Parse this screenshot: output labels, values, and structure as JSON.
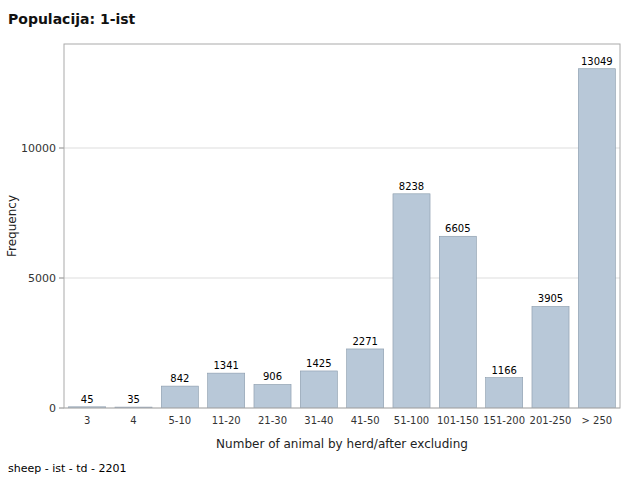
{
  "chart_data": {
    "type": "bar",
    "title": "Populacija: 1-ist",
    "xlabel": "Number of animal by herd/after excluding",
    "ylabel": "Frequency",
    "footnote": "sheep - ist - td - 2201",
    "categories": [
      "3",
      "4",
      "5-10",
      "11-20",
      "21-30",
      "31-40",
      "41-50",
      "51-100",
      "101-150",
      "151-200",
      "201-250",
      "> 250"
    ],
    "values": [
      45,
      35,
      842,
      1341,
      906,
      1425,
      2271,
      8238,
      6605,
      1166,
      3905,
      13049
    ],
    "color": "#b8c8d8",
    "ylim": [
      0,
      14000
    ],
    "yticks": [
      0,
      5000,
      10000
    ],
    "grid": true,
    "data_labels": true
  }
}
